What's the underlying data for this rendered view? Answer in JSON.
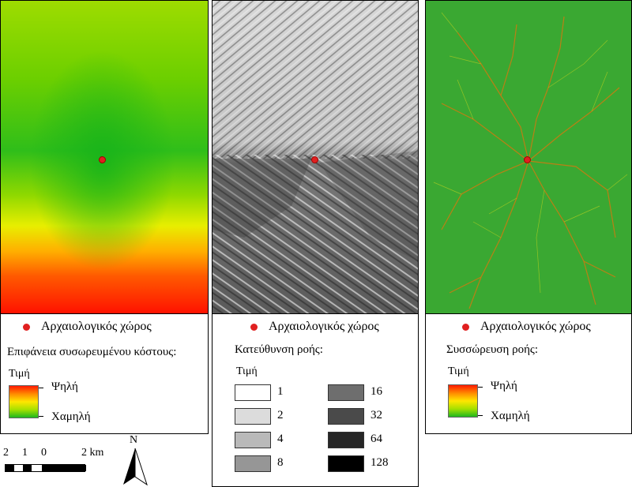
{
  "site_label": "Αρχαιολογικός χώρος",
  "panel1": {
    "title": "Επιφάνεια συσωρευμένου κόστους:",
    "value_label": "Τιμή",
    "high": "Ψηλή",
    "low": "Χαμηλή"
  },
  "panel2": {
    "title": "Κατεύθυνση ροής:",
    "value_label": "Τιμή",
    "classes": [
      {
        "value": "1",
        "color": "#ffffff"
      },
      {
        "value": "2",
        "color": "#dcdcdc"
      },
      {
        "value": "4",
        "color": "#b9b9b9"
      },
      {
        "value": "8",
        "color": "#969696"
      },
      {
        "value": "16",
        "color": "#6e6e6e"
      },
      {
        "value": "32",
        "color": "#4a4a4a"
      },
      {
        "value": "64",
        "color": "#262626"
      },
      {
        "value": "128",
        "color": "#000000"
      }
    ]
  },
  "panel3": {
    "title": "Συσσώρευση ροής:",
    "value_label": "Τιμή",
    "high": "Ψηλή",
    "low": "Χαμηλή"
  },
  "scale": {
    "labels": [
      "2",
      "1",
      "0",
      "2 km"
    ]
  },
  "north": "N",
  "colors": {
    "site_dot": "#e02020",
    "ramp_high": "#ff1a00",
    "ramp_mid": "#ffe600",
    "ramp_low": "#1fb81f",
    "flow_bg": "#3aa832",
    "stream": "#d07a10"
  }
}
